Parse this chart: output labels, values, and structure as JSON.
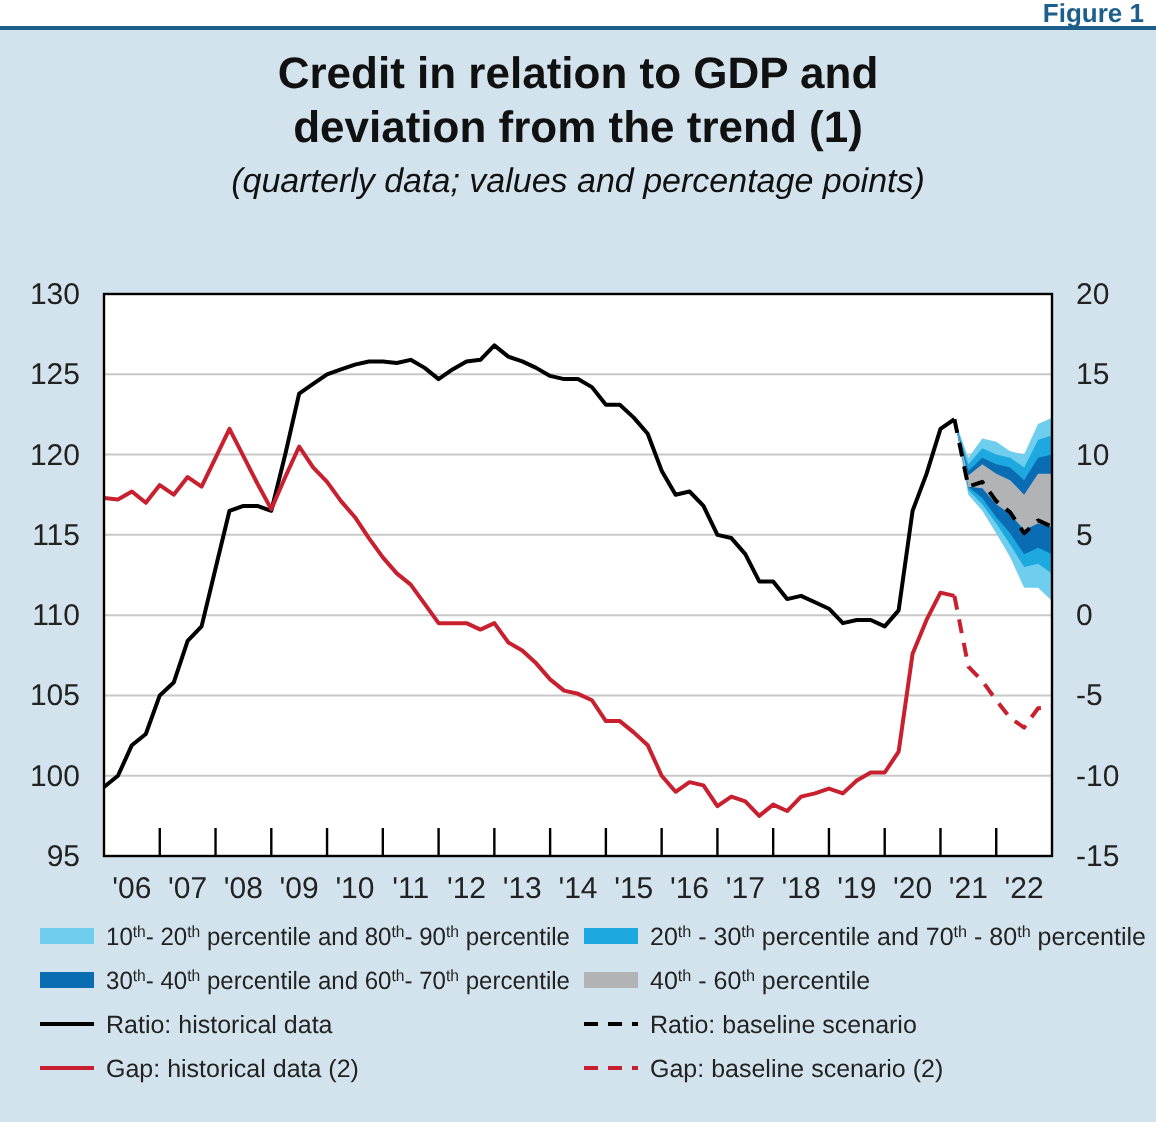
{
  "chart_data": {
    "type": "line",
    "title": "Credit in relation to GDP and deviation from the trend (1)",
    "subtitle": "(quarterly data; values and percentage points)",
    "annotations": [
      "Figure 1"
    ],
    "x": [
      "2006-01",
      "2006-04",
      "2006-07",
      "2006-10",
      "2007-01",
      "2007-04",
      "2007-07",
      "2007-10",
      "2008-01",
      "2008-04",
      "2008-07",
      "2008-10",
      "2009-01",
      "2009-04",
      "2009-07",
      "2009-10",
      "2010-01",
      "2010-04",
      "2010-07",
      "2010-10",
      "2011-01",
      "2011-04",
      "2011-07",
      "2011-10",
      "2012-01",
      "2012-04",
      "2012-07",
      "2012-10",
      "2013-01",
      "2013-04",
      "2013-07",
      "2013-10",
      "2014-01",
      "2014-04",
      "2014-07",
      "2014-10",
      "2015-01",
      "2015-04",
      "2015-07",
      "2015-10",
      "2016-01",
      "2016-04",
      "2016-07",
      "2016-10",
      "2017-01",
      "2017-04",
      "2017-07",
      "2017-10",
      "2018-01",
      "2018-04",
      "2018-07",
      "2018-10",
      "2019-01",
      "2019-04",
      "2019-07",
      "2019-10",
      "2020-01",
      "2020-04",
      "2020-07",
      "2020-10",
      "2021-01",
      "2021-04"
    ],
    "xlim": [
      "2006-01",
      "2023-01"
    ],
    "xticks": [
      {
        "value": "2006-07",
        "label": "'06"
      },
      {
        "value": "2007",
        "label": null
      },
      {
        "value": "2007-07",
        "label": "'07"
      },
      {
        "value": "2008",
        "label": null
      },
      {
        "value": "2008-07",
        "label": "'08"
      },
      {
        "value": "2009",
        "label": null
      },
      {
        "value": "2009-07",
        "label": "'09"
      },
      {
        "value": "2010",
        "label": null
      },
      {
        "value": "2010-07",
        "label": "'10"
      },
      {
        "value": "2011",
        "label": null
      },
      {
        "value": "2011-07",
        "label": "'11"
      },
      {
        "value": "2012",
        "label": null
      },
      {
        "value": "2012-07",
        "label": "'12"
      },
      {
        "value": "2013",
        "label": null
      },
      {
        "value": "2013-07",
        "label": "'13"
      },
      {
        "value": "2014",
        "label": null
      },
      {
        "value": "2014-07",
        "label": "'14"
      },
      {
        "value": "2015",
        "label": null
      },
      {
        "value": "2015-07",
        "label": "'15"
      },
      {
        "value": "2016",
        "label": null
      },
      {
        "value": "2016-07",
        "label": "'16"
      },
      {
        "value": "2017",
        "label": null
      },
      {
        "value": "2017-07",
        "label": "'17"
      },
      {
        "value": "2018",
        "label": null
      },
      {
        "value": "2018-07",
        "label": "'18"
      },
      {
        "value": "2019",
        "label": null
      },
      {
        "value": "2019-07",
        "label": "'19"
      },
      {
        "value": "2020",
        "label": null
      },
      {
        "value": "2020-07",
        "label": "'20"
      },
      {
        "value": "2021",
        "label": null
      },
      {
        "value": "2021-07",
        "label": "'21"
      },
      {
        "value": "2022",
        "label": null
      },
      {
        "value": "2022-07",
        "label": "'22"
      }
    ],
    "ylim": [
      95,
      130
    ],
    "yticks": [
      95,
      100,
      105,
      110,
      115,
      120,
      125,
      130
    ],
    "y2lim": [
      -15,
      20
    ],
    "y2ticks": [
      -15,
      -10,
      -5,
      0,
      5,
      10,
      15,
      20
    ],
    "grid": "y",
    "legend": "bottom",
    "series": [
      {
        "name": "10$^{th}$- 20$^{th}$ percentile and 80$^{th}$- 90$^{th}$ percentile",
        "type": "area",
        "color": "#6fcdee",
        "x": [
          "2021-04",
          "2021-07",
          "2021-10",
          "2022-01",
          "2022-04",
          "2022-07",
          "2022-10",
          "2023-01"
        ],
        "values": [
          null,
          null,
          null,
          null,
          null,
          null,
          null,
          null
        ],
        "lower": [
          122.2,
          117.5,
          116.5,
          115.1,
          113.6,
          111.7,
          111.7,
          110.9
        ],
        "upper": [
          122.2,
          119.8,
          121.0,
          120.8,
          120.2,
          120.0,
          121.9,
          122.3
        ]
      },
      {
        "name": "20$^{th}$ - 30$^{th}$ percentile and 70$^{th}$ - 80$^{th}$ percentile",
        "type": "area",
        "color": "#1ea8e0",
        "x": [
          "2021-04",
          "2021-07",
          "2021-10",
          "2022-01",
          "2022-04",
          "2022-07",
          "2022-10",
          "2023-01"
        ],
        "values": [
          null,
          null,
          null,
          null,
          null,
          null,
          null,
          null
        ],
        "lower": [
          122.2,
          117.8,
          116.9,
          115.7,
          114.4,
          113.0,
          113.2,
          112.6
        ],
        "upper": [
          122.2,
          119.4,
          120.4,
          120.0,
          119.8,
          119.2,
          120.9,
          121.2
        ]
      },
      {
        "name": "30$^{th}$- 40$^{th}$ percentile and 60$^{th}$- 70$^{th}$ percentile",
        "type": "area",
        "color": "#0a6db4",
        "x": [
          "2021-04",
          "2021-07",
          "2021-10",
          "2022-01",
          "2022-04",
          "2022-07",
          "2022-10",
          "2023-01"
        ],
        "values": [
          null,
          null,
          null,
          null,
          null,
          null,
          null,
          null
        ],
        "lower": [
          122.2,
          118.0,
          117.3,
          116.1,
          115.1,
          113.8,
          114.2,
          113.8
        ],
        "upper": [
          122.2,
          119.0,
          119.8,
          119.4,
          119.2,
          118.4,
          119.8,
          120.0
        ]
      },
      {
        "name": "40$^{th}$ - 60$^{th}$ percentile",
        "type": "area",
        "color": "#b1b3b5",
        "x": [
          "2021-04",
          "2021-07",
          "2021-10",
          "2022-01",
          "2022-04",
          "2022-07",
          "2022-10",
          "2023-01"
        ],
        "values": [
          null,
          null,
          null,
          null,
          null,
          null,
          null,
          null
        ],
        "lower": [
          122.2,
          118.0,
          117.9,
          116.9,
          116.3,
          115.3,
          115.7,
          115.5
        ],
        "upper": [
          122.2,
          118.7,
          119.4,
          118.8,
          118.4,
          117.5,
          118.8,
          118.8
        ]
      },
      {
        "name": "Ratio: historical data",
        "color": "#000000",
        "line_style": "solid",
        "values": [
          99.3,
          100.0,
          101.9,
          102.6,
          105.0,
          105.8,
          108.4,
          109.3,
          112.9,
          116.5,
          116.8,
          116.8,
          116.5,
          120.0,
          123.8,
          124.4,
          125.0,
          125.3,
          125.6,
          125.8,
          125.8,
          125.7,
          125.9,
          125.4,
          124.7,
          125.3,
          125.8,
          125.9,
          126.8,
          126.1,
          125.8,
          125.4,
          124.9,
          124.7,
          124.7,
          124.2,
          123.1,
          123.1,
          122.3,
          121.3,
          119.0,
          117.5,
          117.7,
          116.8,
          115.0,
          114.8,
          113.8,
          112.1,
          112.1,
          111.0,
          111.2,
          110.8,
          110.4,
          109.5,
          109.7,
          109.7,
          109.3,
          110.3,
          116.5,
          118.8,
          121.6,
          122.2
        ]
      },
      {
        "name": "Ratio: baseline scenario",
        "color": "#000000",
        "line_style": "dashed",
        "x": [
          "2021-04",
          "2021-07",
          "2021-10",
          "2022-01",
          "2022-04",
          "2022-07",
          "2022-10",
          "2023-01"
        ],
        "values": [
          122.2,
          118.0,
          118.3,
          117.1,
          116.4,
          115.1,
          115.9,
          115.5
        ]
      },
      {
        "name": "Gap: historical data (2)",
        "color": "#c8202f",
        "line_style": "solid",
        "axis": "y2",
        "values": [
          7.3,
          7.2,
          7.7,
          7.0,
          8.1,
          7.5,
          8.6,
          8.0,
          9.8,
          11.6,
          9.9,
          8.2,
          6.6,
          8.6,
          10.5,
          9.2,
          8.3,
          7.1,
          6.1,
          4.8,
          3.6,
          2.6,
          1.9,
          0.7,
          -0.5,
          -0.5,
          -0.5,
          -0.9,
          -0.5,
          -1.7,
          -2.2,
          -3.0,
          -4.0,
          -4.7,
          -4.9,
          -5.3,
          -6.6,
          -6.6,
          -7.3,
          -8.1,
          -10.0,
          -11.0,
          -10.4,
          -10.6,
          -11.9,
          -11.3,
          -11.6,
          -12.5,
          -11.8,
          -12.2,
          -11.3,
          -11.1,
          -10.8,
          -11.1,
          -10.3,
          -9.8,
          -9.8,
          -8.5,
          -2.4,
          -0.3,
          1.4,
          1.2
        ]
      },
      {
        "name": "Gap: baseline scenario (2)",
        "color": "#c8202f",
        "line_style": "dashed",
        "axis": "y2",
        "x": [
          "2021-04",
          "2021-07",
          "2021-10",
          "2022-01",
          "2022-04",
          "2022-07",
          "2022-10",
          "2023-01"
        ],
        "values": [
          1.2,
          -3.2,
          -4.1,
          -5.3,
          -6.4,
          -7.0,
          -5.8,
          -5.7
        ]
      }
    ]
  }
}
